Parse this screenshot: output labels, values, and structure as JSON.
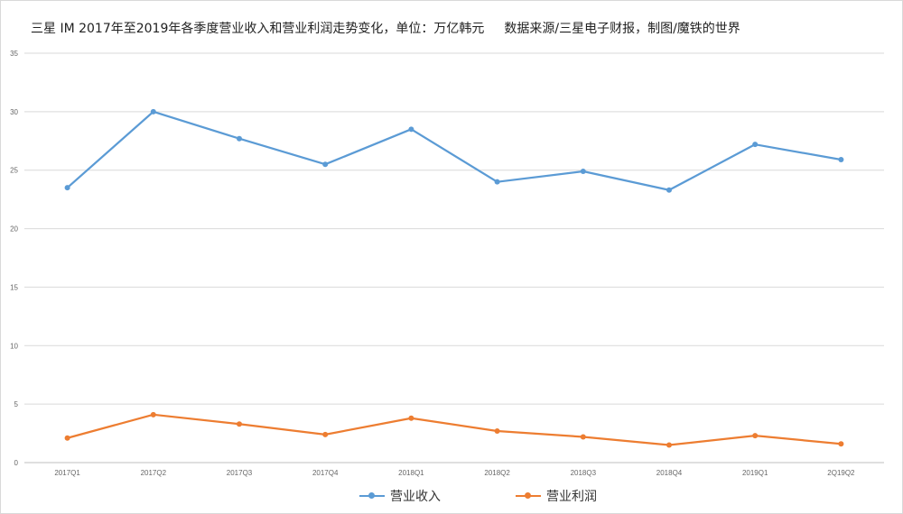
{
  "title": "三星 IM 2017年至2019年各季度营业收入和营业利润走势变化，单位：万亿韩元",
  "source": "数据来源/三星电子财报，制图/魔铁的世界",
  "colors": {
    "revenue": "#5b9bd5",
    "profit": "#ed7d31",
    "grid": "#d9d9d9"
  },
  "chart_data": {
    "type": "line",
    "categories": [
      "2017Q1",
      "2017Q2",
      "2017Q3",
      "2017Q4",
      "2018Q1",
      "2018Q2",
      "2018Q3",
      "2018Q4",
      "2019Q1",
      "2Q19Q2"
    ],
    "series": [
      {
        "name": "营业收入",
        "values": [
          23.5,
          30.0,
          27.7,
          25.5,
          28.5,
          24.0,
          24.9,
          23.3,
          27.2,
          25.9
        ]
      },
      {
        "name": "营业利润",
        "values": [
          2.1,
          4.1,
          3.3,
          2.4,
          3.8,
          2.7,
          2.2,
          1.5,
          2.3,
          1.6
        ]
      }
    ],
    "ylim": [
      0,
      35
    ],
    "yticks": [
      0,
      5,
      10,
      15,
      20,
      25,
      30,
      35
    ],
    "grid": true,
    "legend": "bottom"
  }
}
